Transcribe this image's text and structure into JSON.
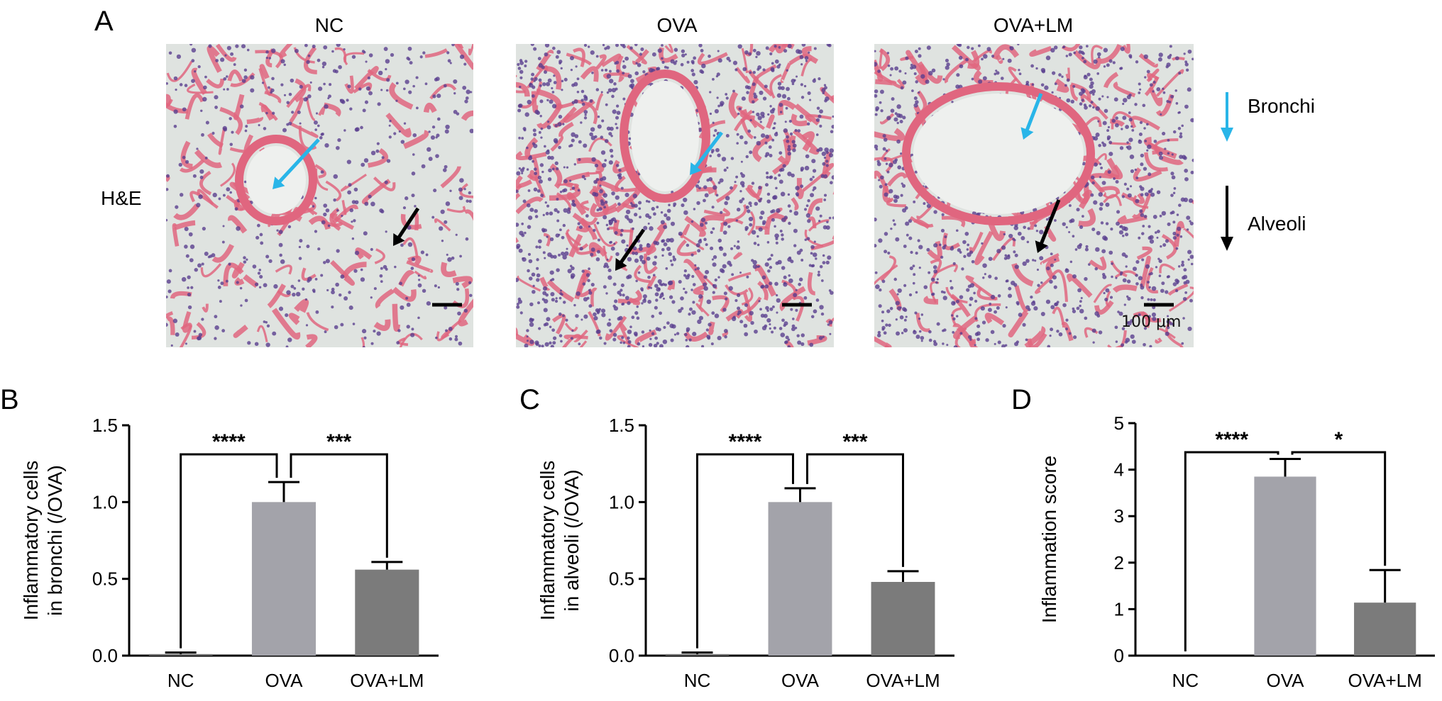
{
  "panel_letters": [
    "A",
    "B",
    "C",
    "D"
  ],
  "micrographs": {
    "stain_label": "H&E",
    "columns": [
      "NC",
      "OVA",
      "OVA+LM"
    ],
    "scale_bar_label": "100 μm",
    "legend": [
      {
        "label": "Bronchi",
        "color": "#29b5e8",
        "icon": "arrow-down-icon"
      },
      {
        "label": "Alveoli",
        "color": "#000000",
        "icon": "arrow-down-icon"
      }
    ],
    "colors": {
      "background": "#dfe3e0",
      "tissue": "#e0667f",
      "nuclei": "#5a3f8f",
      "vessel": "#b8283a"
    }
  },
  "chart_data": [
    {
      "type": "bar",
      "panel": "B",
      "categories": [
        "NC",
        "OVA",
        "OVA+LM"
      ],
      "values": [
        0.01,
        1.0,
        0.56
      ],
      "error": [
        0.01,
        0.13,
        0.05
      ],
      "bar_colors": [
        "#6e6e6e",
        "#a3a3aa",
        "#7b7b7b"
      ],
      "ylabel": [
        "Inflammatory cells",
        "in bronchi (/OVA)"
      ],
      "ylim": [
        0,
        1.5
      ],
      "yticks": [
        "0.0",
        "0.5",
        "1.0",
        "1.5"
      ],
      "significance": [
        {
          "from": 0,
          "to": 1,
          "label": "****"
        },
        {
          "from": 1,
          "to": 2,
          "label": "***"
        }
      ]
    },
    {
      "type": "bar",
      "panel": "C",
      "categories": [
        "NC",
        "OVA",
        "OVA+LM"
      ],
      "values": [
        0.01,
        1.0,
        0.48
      ],
      "error": [
        0.01,
        0.09,
        0.07
      ],
      "bar_colors": [
        "#6e6e6e",
        "#a3a3aa",
        "#7b7b7b"
      ],
      "ylabel": [
        "Inflammatory cells",
        "in alveoli (/OVA)"
      ],
      "ylim": [
        0,
        1.5
      ],
      "yticks": [
        "0.0",
        "0.5",
        "1.0",
        "1.5"
      ],
      "significance": [
        {
          "from": 0,
          "to": 1,
          "label": "****"
        },
        {
          "from": 1,
          "to": 2,
          "label": "***"
        }
      ]
    },
    {
      "type": "bar",
      "panel": "D",
      "categories": [
        "NC",
        "OVA",
        "OVA+LM"
      ],
      "values": [
        0,
        3.85,
        1.14
      ],
      "error": [
        0,
        0.38,
        0.7
      ],
      "bar_colors": [
        "#6e6e6e",
        "#a3a3aa",
        "#7b7b7b"
      ],
      "ylabel": [
        "Inflammation score"
      ],
      "ylim": [
        0,
        5
      ],
      "yticks": [
        "0",
        "1",
        "2",
        "3",
        "4",
        "5"
      ],
      "significance": [
        {
          "from": 0,
          "to": 1,
          "label": "****"
        },
        {
          "from": 1,
          "to": 2,
          "label": "*"
        }
      ]
    }
  ]
}
